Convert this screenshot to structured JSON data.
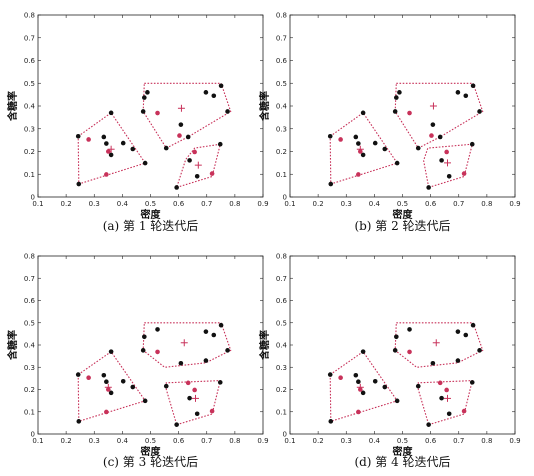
{
  "colors": {
    "black_point": "#111111",
    "red_point": "#c8325a",
    "hull": "#c8325a",
    "axis": "#222222"
  },
  "chart_data": [
    {
      "type": "scatter",
      "caption": "(a) 第 1 轮迭代后",
      "xlabel": "密度",
      "ylabel": "含糖率",
      "xlim": [
        0.1,
        0.9
      ],
      "ylim": [
        0,
        0.8
      ],
      "xticks": [
        "0.1",
        "0.2",
        "0.3",
        "0.4",
        "0.5",
        "0.6",
        "0.7",
        "0.8",
        "0.9"
      ],
      "yticks": [
        "0",
        "0.1",
        "0.2",
        "0.3",
        "0.4",
        "0.5",
        "0.6",
        "0.7",
        "0.8"
      ],
      "points": [
        {
          "x": 0.243,
          "y": 0.267,
          "c": "black"
        },
        {
          "x": 0.245,
          "y": 0.057,
          "c": "black"
        },
        {
          "x": 0.343,
          "y": 0.099,
          "c": "red"
        },
        {
          "x": 0.36,
          "y": 0.37,
          "c": "black"
        },
        {
          "x": 0.403,
          "y": 0.237,
          "c": "black"
        },
        {
          "x": 0.437,
          "y": 0.211,
          "c": "black"
        },
        {
          "x": 0.481,
          "y": 0.149,
          "c": "black"
        },
        {
          "x": 0.334,
          "y": 0.264,
          "c": "black"
        },
        {
          "x": 0.28,
          "y": 0.253,
          "c": "red"
        },
        {
          "x": 0.36,
          "y": 0.185,
          "c": "black"
        },
        {
          "x": 0.343,
          "y": 0.235,
          "c": "black"
        },
        {
          "x": 0.35,
          "y": 0.2,
          "c": "red"
        },
        {
          "x": 0.478,
          "y": 0.437,
          "c": "black"
        },
        {
          "x": 0.474,
          "y": 0.376,
          "c": "black"
        },
        {
          "x": 0.489,
          "y": 0.46,
          "c": "black"
        },
        {
          "x": 0.525,
          "y": 0.369,
          "c": "red"
        },
        {
          "x": 0.556,
          "y": 0.215,
          "c": "black"
        },
        {
          "x": 0.593,
          "y": 0.042,
          "c": "black"
        },
        {
          "x": 0.608,
          "y": 0.318,
          "c": "black"
        },
        {
          "x": 0.639,
          "y": 0.161,
          "c": "black"
        },
        {
          "x": 0.657,
          "y": 0.198,
          "c": "red"
        },
        {
          "x": 0.666,
          "y": 0.091,
          "c": "black"
        },
        {
          "x": 0.634,
          "y": 0.264,
          "c": "black"
        },
        {
          "x": 0.697,
          "y": 0.46,
          "c": "black"
        },
        {
          "x": 0.719,
          "y": 0.103,
          "c": "red"
        },
        {
          "x": 0.725,
          "y": 0.445,
          "c": "black"
        },
        {
          "x": 0.751,
          "y": 0.489,
          "c": "black"
        },
        {
          "x": 0.774,
          "y": 0.376,
          "c": "black"
        },
        {
          "x": 0.603,
          "y": 0.27,
          "c": "red"
        },
        {
          "x": 0.748,
          "y": 0.232,
          "c": "black"
        }
      ],
      "centers": [
        {
          "x": 0.36,
          "y": 0.21
        },
        {
          "x": 0.61,
          "y": 0.39
        },
        {
          "x": 0.67,
          "y": 0.14
        }
      ],
      "hulls": [
        [
          [
            0.243,
            0.267
          ],
          [
            0.36,
            0.37
          ],
          [
            0.481,
            0.149
          ],
          [
            0.245,
            0.057
          ]
        ],
        [
          [
            0.478,
            0.5
          ],
          [
            0.751,
            0.5
          ],
          [
            0.785,
            0.376
          ],
          [
            0.634,
            0.264
          ],
          [
            0.556,
            0.215
          ],
          [
            0.474,
            0.376
          ]
        ],
        [
          [
            0.593,
            0.042
          ],
          [
            0.719,
            0.09
          ],
          [
            0.748,
            0.232
          ],
          [
            0.657,
            0.215
          ],
          [
            0.625,
            0.165
          ]
        ]
      ]
    },
    {
      "type": "scatter",
      "caption": "(b) 第 2 轮迭代后",
      "xlabel": "密度",
      "ylabel": "含糖率",
      "xlim": [
        0.1,
        0.9
      ],
      "ylim": [
        0,
        0.8
      ],
      "xticks": [
        "0.1",
        "0.2",
        "0.3",
        "0.4",
        "0.5",
        "0.6",
        "0.7",
        "0.8",
        "0.9"
      ],
      "yticks": [
        "0",
        "0.1",
        "0.2",
        "0.3",
        "0.4",
        "0.5",
        "0.6",
        "0.7",
        "0.8"
      ],
      "points": [
        {
          "x": 0.243,
          "y": 0.267,
          "c": "black"
        },
        {
          "x": 0.245,
          "y": 0.057,
          "c": "black"
        },
        {
          "x": 0.343,
          "y": 0.099,
          "c": "red"
        },
        {
          "x": 0.36,
          "y": 0.37,
          "c": "black"
        },
        {
          "x": 0.403,
          "y": 0.237,
          "c": "black"
        },
        {
          "x": 0.437,
          "y": 0.211,
          "c": "black"
        },
        {
          "x": 0.334,
          "y": 0.264,
          "c": "black"
        },
        {
          "x": 0.28,
          "y": 0.253,
          "c": "red"
        },
        {
          "x": 0.36,
          "y": 0.185,
          "c": "black"
        },
        {
          "x": 0.343,
          "y": 0.235,
          "c": "black"
        },
        {
          "x": 0.35,
          "y": 0.2,
          "c": "red"
        },
        {
          "x": 0.478,
          "y": 0.437,
          "c": "black"
        },
        {
          "x": 0.474,
          "y": 0.376,
          "c": "black"
        },
        {
          "x": 0.489,
          "y": 0.46,
          "c": "black"
        },
        {
          "x": 0.525,
          "y": 0.369,
          "c": "red"
        },
        {
          "x": 0.556,
          "y": 0.215,
          "c": "black"
        },
        {
          "x": 0.608,
          "y": 0.318,
          "c": "black"
        },
        {
          "x": 0.634,
          "y": 0.264,
          "c": "black"
        },
        {
          "x": 0.697,
          "y": 0.46,
          "c": "black"
        },
        {
          "x": 0.725,
          "y": 0.445,
          "c": "black"
        },
        {
          "x": 0.751,
          "y": 0.489,
          "c": "black"
        },
        {
          "x": 0.774,
          "y": 0.376,
          "c": "black"
        },
        {
          "x": 0.603,
          "y": 0.27,
          "c": "red"
        },
        {
          "x": 0.481,
          "y": 0.149,
          "c": "black"
        },
        {
          "x": 0.593,
          "y": 0.042,
          "c": "black"
        },
        {
          "x": 0.639,
          "y": 0.161,
          "c": "black"
        },
        {
          "x": 0.657,
          "y": 0.198,
          "c": "red"
        },
        {
          "x": 0.666,
          "y": 0.091,
          "c": "black"
        },
        {
          "x": 0.719,
          "y": 0.103,
          "c": "red"
        },
        {
          "x": 0.748,
          "y": 0.232,
          "c": "black"
        }
      ],
      "centers": [
        {
          "x": 0.35,
          "y": 0.21
        },
        {
          "x": 0.61,
          "y": 0.4
        },
        {
          "x": 0.66,
          "y": 0.15
        }
      ],
      "hulls": [
        [
          [
            0.243,
            0.267
          ],
          [
            0.36,
            0.37
          ],
          [
            0.481,
            0.149
          ],
          [
            0.245,
            0.057
          ]
        ],
        [
          [
            0.478,
            0.5
          ],
          [
            0.751,
            0.5
          ],
          [
            0.785,
            0.376
          ],
          [
            0.634,
            0.264
          ],
          [
            0.556,
            0.215
          ],
          [
            0.474,
            0.376
          ]
        ],
        [
          [
            0.593,
            0.042
          ],
          [
            0.719,
            0.09
          ],
          [
            0.748,
            0.232
          ],
          [
            0.59,
            0.215
          ],
          [
            0.575,
            0.16
          ]
        ]
      ]
    },
    {
      "type": "scatter",
      "caption": "(c) 第 3 轮迭代后",
      "xlabel": "密度",
      "ylabel": "含糖率",
      "xlim": [
        0.1,
        0.9
      ],
      "ylim": [
        0,
        0.8
      ],
      "xticks": [
        "0.1",
        "0.2",
        "0.3",
        "0.4",
        "0.5",
        "0.6",
        "0.7",
        "0.8",
        "0.9"
      ],
      "yticks": [
        "0",
        "0.1",
        "0.2",
        "0.3",
        "0.4",
        "0.5",
        "0.6",
        "0.7",
        "0.8"
      ],
      "points": [
        {
          "x": 0.243,
          "y": 0.267,
          "c": "black"
        },
        {
          "x": 0.245,
          "y": 0.057,
          "c": "black"
        },
        {
          "x": 0.343,
          "y": 0.099,
          "c": "red"
        },
        {
          "x": 0.36,
          "y": 0.37,
          "c": "black"
        },
        {
          "x": 0.403,
          "y": 0.237,
          "c": "black"
        },
        {
          "x": 0.437,
          "y": 0.211,
          "c": "black"
        },
        {
          "x": 0.334,
          "y": 0.264,
          "c": "black"
        },
        {
          "x": 0.28,
          "y": 0.253,
          "c": "red"
        },
        {
          "x": 0.36,
          "y": 0.185,
          "c": "black"
        },
        {
          "x": 0.343,
          "y": 0.235,
          "c": "black"
        },
        {
          "x": 0.35,
          "y": 0.2,
          "c": "red"
        },
        {
          "x": 0.481,
          "y": 0.149,
          "c": "black"
        },
        {
          "x": 0.478,
          "y": 0.437,
          "c": "black"
        },
        {
          "x": 0.474,
          "y": 0.376,
          "c": "black"
        },
        {
          "x": 0.525,
          "y": 0.47,
          "c": "black"
        },
        {
          "x": 0.525,
          "y": 0.369,
          "c": "red"
        },
        {
          "x": 0.608,
          "y": 0.318,
          "c": "black"
        },
        {
          "x": 0.697,
          "y": 0.46,
          "c": "black"
        },
        {
          "x": 0.725,
          "y": 0.445,
          "c": "black"
        },
        {
          "x": 0.751,
          "y": 0.489,
          "c": "black"
        },
        {
          "x": 0.774,
          "y": 0.376,
          "c": "black"
        },
        {
          "x": 0.697,
          "y": 0.33,
          "c": "black"
        },
        {
          "x": 0.593,
          "y": 0.042,
          "c": "black"
        },
        {
          "x": 0.639,
          "y": 0.161,
          "c": "black"
        },
        {
          "x": 0.657,
          "y": 0.198,
          "c": "red"
        },
        {
          "x": 0.666,
          "y": 0.091,
          "c": "black"
        },
        {
          "x": 0.719,
          "y": 0.103,
          "c": "red"
        },
        {
          "x": 0.748,
          "y": 0.232,
          "c": "black"
        },
        {
          "x": 0.556,
          "y": 0.215,
          "c": "black"
        },
        {
          "x": 0.634,
          "y": 0.23,
          "c": "red"
        }
      ],
      "centers": [
        {
          "x": 0.35,
          "y": 0.21
        },
        {
          "x": 0.62,
          "y": 0.41
        },
        {
          "x": 0.66,
          "y": 0.16
        }
      ],
      "hulls": [
        [
          [
            0.243,
            0.267
          ],
          [
            0.36,
            0.37
          ],
          [
            0.481,
            0.149
          ],
          [
            0.245,
            0.057
          ]
        ],
        [
          [
            0.478,
            0.5
          ],
          [
            0.751,
            0.5
          ],
          [
            0.785,
            0.376
          ],
          [
            0.697,
            0.32
          ],
          [
            0.55,
            0.3
          ],
          [
            0.474,
            0.376
          ]
        ],
        [
          [
            0.593,
            0.042
          ],
          [
            0.719,
            0.09
          ],
          [
            0.748,
            0.24
          ],
          [
            0.556,
            0.23
          ],
          [
            0.556,
            0.2
          ]
        ]
      ]
    },
    {
      "type": "scatter",
      "caption": "(d) 第 4 轮迭代后",
      "xlabel": "密度",
      "ylabel": "含糖率",
      "xlim": [
        0.1,
        0.9
      ],
      "ylim": [
        0,
        0.8
      ],
      "xticks": [
        "0.1",
        "0.2",
        "0.3",
        "0.4",
        "0.5",
        "0.6",
        "0.7",
        "0.8",
        "0.9"
      ],
      "yticks": [
        "0",
        "0.1",
        "0.2",
        "0.3",
        "0.4",
        "0.5",
        "0.6",
        "0.7",
        "0.8"
      ],
      "points": [
        {
          "x": 0.243,
          "y": 0.267,
          "c": "black"
        },
        {
          "x": 0.245,
          "y": 0.057,
          "c": "black"
        },
        {
          "x": 0.343,
          "y": 0.099,
          "c": "red"
        },
        {
          "x": 0.36,
          "y": 0.37,
          "c": "black"
        },
        {
          "x": 0.403,
          "y": 0.237,
          "c": "black"
        },
        {
          "x": 0.437,
          "y": 0.211,
          "c": "black"
        },
        {
          "x": 0.334,
          "y": 0.264,
          "c": "black"
        },
        {
          "x": 0.28,
          "y": 0.253,
          "c": "red"
        },
        {
          "x": 0.36,
          "y": 0.185,
          "c": "black"
        },
        {
          "x": 0.343,
          "y": 0.235,
          "c": "black"
        },
        {
          "x": 0.35,
          "y": 0.2,
          "c": "red"
        },
        {
          "x": 0.481,
          "y": 0.149,
          "c": "black"
        },
        {
          "x": 0.478,
          "y": 0.437,
          "c": "black"
        },
        {
          "x": 0.474,
          "y": 0.376,
          "c": "black"
        },
        {
          "x": 0.525,
          "y": 0.47,
          "c": "black"
        },
        {
          "x": 0.525,
          "y": 0.369,
          "c": "red"
        },
        {
          "x": 0.608,
          "y": 0.318,
          "c": "black"
        },
        {
          "x": 0.697,
          "y": 0.46,
          "c": "black"
        },
        {
          "x": 0.725,
          "y": 0.445,
          "c": "black"
        },
        {
          "x": 0.751,
          "y": 0.489,
          "c": "black"
        },
        {
          "x": 0.774,
          "y": 0.376,
          "c": "black"
        },
        {
          "x": 0.697,
          "y": 0.33,
          "c": "black"
        },
        {
          "x": 0.593,
          "y": 0.042,
          "c": "black"
        },
        {
          "x": 0.639,
          "y": 0.161,
          "c": "black"
        },
        {
          "x": 0.657,
          "y": 0.198,
          "c": "red"
        },
        {
          "x": 0.666,
          "y": 0.091,
          "c": "black"
        },
        {
          "x": 0.719,
          "y": 0.103,
          "c": "red"
        },
        {
          "x": 0.748,
          "y": 0.232,
          "c": "black"
        },
        {
          "x": 0.556,
          "y": 0.215,
          "c": "black"
        },
        {
          "x": 0.634,
          "y": 0.23,
          "c": "red"
        }
      ],
      "centers": [
        {
          "x": 0.35,
          "y": 0.21
        },
        {
          "x": 0.62,
          "y": 0.41
        },
        {
          "x": 0.66,
          "y": 0.16
        }
      ],
      "hulls": [
        [
          [
            0.243,
            0.267
          ],
          [
            0.36,
            0.37
          ],
          [
            0.481,
            0.149
          ],
          [
            0.245,
            0.057
          ]
        ],
        [
          [
            0.478,
            0.5
          ],
          [
            0.751,
            0.5
          ],
          [
            0.785,
            0.376
          ],
          [
            0.697,
            0.32
          ],
          [
            0.55,
            0.3
          ],
          [
            0.474,
            0.376
          ]
        ],
        [
          [
            0.593,
            0.042
          ],
          [
            0.719,
            0.09
          ],
          [
            0.748,
            0.24
          ],
          [
            0.556,
            0.23
          ],
          [
            0.556,
            0.2
          ]
        ]
      ]
    }
  ]
}
